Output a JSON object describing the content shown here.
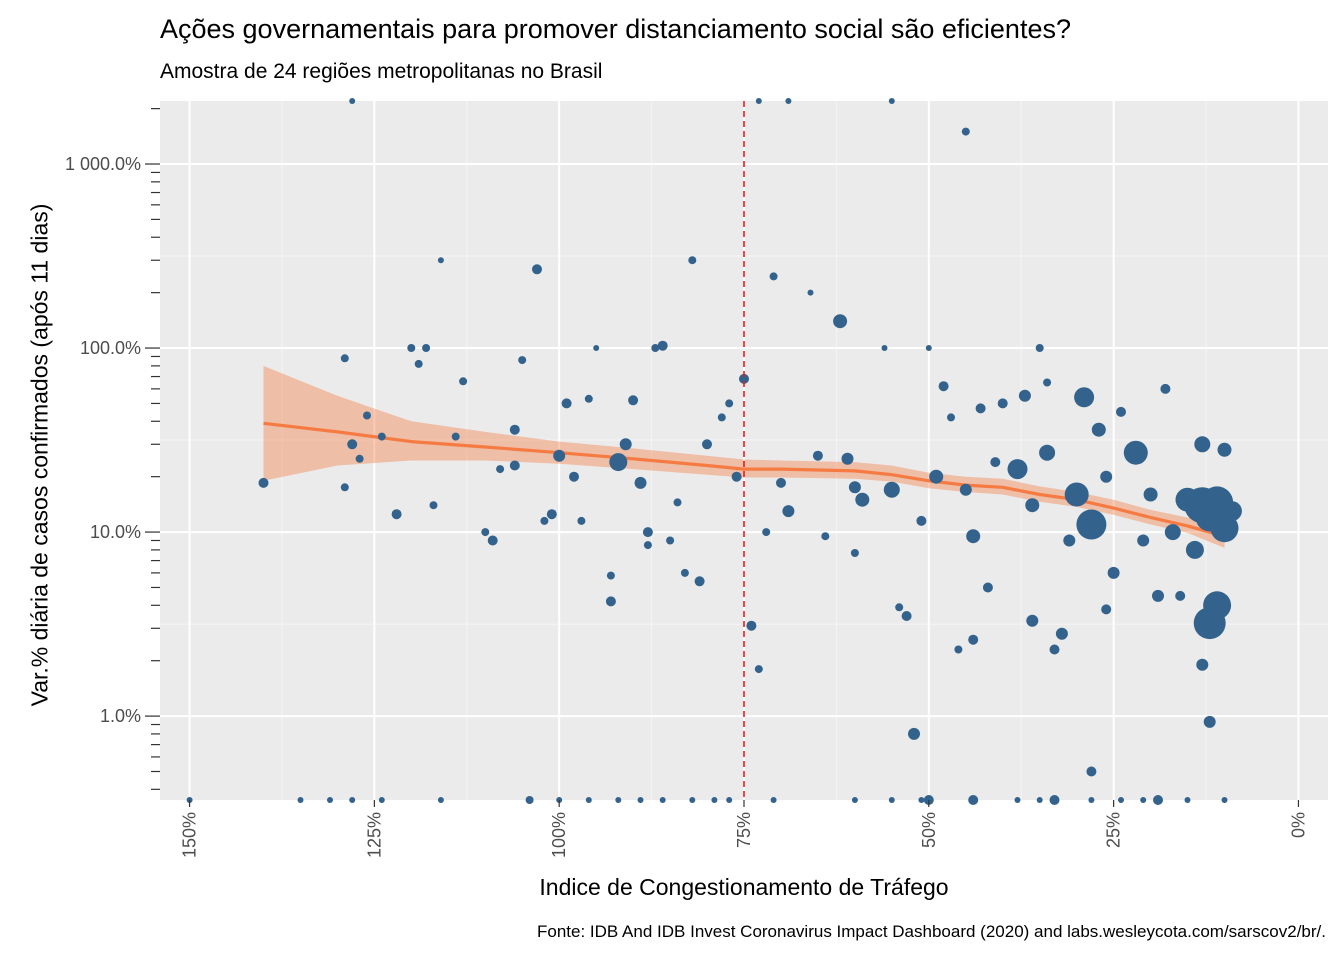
{
  "chart_data": {
    "type": "scatter",
    "title": "Ações governamentais para promover distanciamento social são eficientes?",
    "subtitle": "Amostra de 24 regiões metropolitanas no Brasil",
    "xlabel": "Indice de Congestionamento de Tráfego",
    "ylabel": "Var.% diária de casos confirmados (após 11 dias)",
    "caption": "Fonte: IDB And IDB Invest Coronavirus Impact Dashboard (2020) and labs.wesleycota.com/sarscov2/br/.",
    "x_axis": {
      "reversed": true,
      "xlim": [
        154,
        -4
      ],
      "ticks": [
        150,
        125,
        100,
        75,
        50,
        25,
        0
      ],
      "tick_labels": [
        "150%",
        "125%",
        "100%",
        "75%",
        "50%",
        "25%",
        "0%"
      ]
    },
    "y_axis": {
      "scale": "log10",
      "ylim": [
        0.35,
        2200
      ],
      "ticks": [
        1,
        10,
        100,
        1000
      ],
      "tick_labels": [
        "1.0%",
        "10.0%",
        "100.0%",
        "1 000.0%"
      ]
    },
    "reference_line": {
      "x": 75,
      "color": "#e41a1c",
      "style": "dashed"
    },
    "point_color": "#33638D",
    "smooth": {
      "color": "#F57B42",
      "band_color": "#F57B42",
      "x": [
        140,
        130,
        120,
        110,
        100,
        90,
        80,
        75,
        70,
        60,
        55,
        50,
        45,
        40,
        35,
        30,
        25,
        20,
        15,
        10
      ],
      "y": [
        39,
        35,
        31,
        29,
        27,
        25,
        23,
        22,
        22,
        21.5,
        20.5,
        19,
        18,
        17.5,
        16,
        15,
        13.5,
        12,
        10.8,
        9.5
      ],
      "lower": [
        19,
        23,
        24.5,
        24.5,
        23.5,
        22,
        20.5,
        19.8,
        19.8,
        19.5,
        18.8,
        17.3,
        16.5,
        16,
        14.6,
        13.7,
        12.4,
        11,
        9.9,
        8.2
      ],
      "upper": [
        80,
        55,
        40,
        35,
        31,
        28.5,
        26,
        24.8,
        24.5,
        24,
        23,
        21,
        20,
        19.5,
        17.7,
        16.5,
        15,
        13.2,
        12,
        11
      ]
    },
    "points": [
      {
        "x": 140,
        "y": 18.5,
        "s": 5
      },
      {
        "x": 129,
        "y": 88,
        "s": 4
      },
      {
        "x": 129,
        "y": 17.5,
        "s": 4
      },
      {
        "x": 128,
        "y": 30,
        "s": 5
      },
      {
        "x": 127,
        "y": 25,
        "s": 4
      },
      {
        "x": 126,
        "y": 43,
        "s": 4
      },
      {
        "x": 124,
        "y": 33,
        "s": 4
      },
      {
        "x": 122,
        "y": 12.5,
        "s": 5
      },
      {
        "x": 120,
        "y": 100,
        "s": 4
      },
      {
        "x": 119,
        "y": 82,
        "s": 4
      },
      {
        "x": 118,
        "y": 100,
        "s": 4
      },
      {
        "x": 117,
        "y": 14,
        "s": 4
      },
      {
        "x": 116,
        "y": 300,
        "s": 3
      },
      {
        "x": 114,
        "y": 33,
        "s": 4
      },
      {
        "x": 113,
        "y": 66,
        "s": 4
      },
      {
        "x": 110,
        "y": 10,
        "s": 4
      },
      {
        "x": 109,
        "y": 9,
        "s": 5
      },
      {
        "x": 108,
        "y": 22,
        "s": 4
      },
      {
        "x": 106,
        "y": 36,
        "s": 5
      },
      {
        "x": 106,
        "y": 23,
        "s": 5
      },
      {
        "x": 105,
        "y": 86,
        "s": 4
      },
      {
        "x": 103,
        "y": 268,
        "s": 5
      },
      {
        "x": 102,
        "y": 11.5,
        "s": 4
      },
      {
        "x": 101,
        "y": 12.5,
        "s": 5
      },
      {
        "x": 100,
        "y": 26,
        "s": 6
      },
      {
        "x": 99,
        "y": 50,
        "s": 5
      },
      {
        "x": 98,
        "y": 20,
        "s": 5
      },
      {
        "x": 97,
        "y": 11.5,
        "s": 4
      },
      {
        "x": 96,
        "y": 53,
        "s": 4
      },
      {
        "x": 95,
        "y": 100,
        "s": 3
      },
      {
        "x": 93,
        "y": 4.2,
        "s": 5
      },
      {
        "x": 93,
        "y": 5.8,
        "s": 4
      },
      {
        "x": 92,
        "y": 24,
        "s": 9
      },
      {
        "x": 91,
        "y": 30,
        "s": 6
      },
      {
        "x": 90,
        "y": 52,
        "s": 5
      },
      {
        "x": 89,
        "y": 18.5,
        "s": 6
      },
      {
        "x": 88,
        "y": 10,
        "s": 5
      },
      {
        "x": 88,
        "y": 8.5,
        "s": 4
      },
      {
        "x": 87,
        "y": 100,
        "s": 4
      },
      {
        "x": 86,
        "y": 103,
        "s": 5
      },
      {
        "x": 85,
        "y": 9,
        "s": 4
      },
      {
        "x": 84,
        "y": 14.5,
        "s": 4
      },
      {
        "x": 83,
        "y": 6,
        "s": 4
      },
      {
        "x": 82,
        "y": 300,
        "s": 4
      },
      {
        "x": 81,
        "y": 5.4,
        "s": 5
      },
      {
        "x": 80,
        "y": 30,
        "s": 5
      },
      {
        "x": 78,
        "y": 42,
        "s": 4
      },
      {
        "x": 77,
        "y": 50,
        "s": 4
      },
      {
        "x": 76,
        "y": 20,
        "s": 5
      },
      {
        "x": 75,
        "y": 68,
        "s": 5
      },
      {
        "x": 74,
        "y": 3.1,
        "s": 5
      },
      {
        "x": 73,
        "y": 1.8,
        "s": 4
      },
      {
        "x": 72,
        "y": 10,
        "s": 4
      },
      {
        "x": 71,
        "y": 245,
        "s": 4
      },
      {
        "x": 70,
        "y": 18.5,
        "s": 5
      },
      {
        "x": 69,
        "y": 13,
        "s": 6
      },
      {
        "x": 66,
        "y": 200,
        "s": 3
      },
      {
        "x": 65,
        "y": 26,
        "s": 5
      },
      {
        "x": 64,
        "y": 9.5,
        "s": 4
      },
      {
        "x": 62,
        "y": 140,
        "s": 7
      },
      {
        "x": 61,
        "y": 25,
        "s": 6
      },
      {
        "x": 60,
        "y": 7.7,
        "s": 4
      },
      {
        "x": 60,
        "y": 17.5,
        "s": 6
      },
      {
        "x": 59,
        "y": 15,
        "s": 7
      },
      {
        "x": 56,
        "y": 100,
        "s": 3
      },
      {
        "x": 55,
        "y": 17,
        "s": 8
      },
      {
        "x": 54,
        "y": 3.9,
        "s": 4
      },
      {
        "x": 53,
        "y": 3.5,
        "s": 5
      },
      {
        "x": 52,
        "y": 0.8,
        "s": 6
      },
      {
        "x": 51,
        "y": 11.5,
        "s": 5
      },
      {
        "x": 50,
        "y": 100,
        "s": 3
      },
      {
        "x": 49,
        "y": 20,
        "s": 7
      },
      {
        "x": 48,
        "y": 62,
        "s": 5
      },
      {
        "x": 47,
        "y": 42,
        "s": 4
      },
      {
        "x": 46,
        "y": 2.3,
        "s": 4
      },
      {
        "x": 45,
        "y": 1500,
        "s": 4
      },
      {
        "x": 45,
        "y": 17,
        "s": 6
      },
      {
        "x": 44,
        "y": 9.5,
        "s": 7
      },
      {
        "x": 44,
        "y": 2.6,
        "s": 5
      },
      {
        "x": 43,
        "y": 47,
        "s": 5
      },
      {
        "x": 42,
        "y": 5,
        "s": 5
      },
      {
        "x": 41,
        "y": 24,
        "s": 5
      },
      {
        "x": 40,
        "y": 50,
        "s": 5
      },
      {
        "x": 38,
        "y": 22,
        "s": 10
      },
      {
        "x": 37,
        "y": 55,
        "s": 6
      },
      {
        "x": 36,
        "y": 14,
        "s": 7
      },
      {
        "x": 36,
        "y": 3.3,
        "s": 6
      },
      {
        "x": 35,
        "y": 100,
        "s": 4
      },
      {
        "x": 34,
        "y": 27,
        "s": 8
      },
      {
        "x": 34,
        "y": 65,
        "s": 4
      },
      {
        "x": 33,
        "y": 2.3,
        "s": 5
      },
      {
        "x": 32,
        "y": 2.8,
        "s": 6
      },
      {
        "x": 31,
        "y": 9,
        "s": 6
      },
      {
        "x": 30,
        "y": 16,
        "s": 12
      },
      {
        "x": 29,
        "y": 54,
        "s": 10
      },
      {
        "x": 28,
        "y": 11,
        "s": 15
      },
      {
        "x": 28,
        "y": 0.5,
        "s": 5
      },
      {
        "x": 27,
        "y": 36,
        "s": 7
      },
      {
        "x": 26,
        "y": 3.8,
        "s": 5
      },
      {
        "x": 26,
        "y": 20,
        "s": 6
      },
      {
        "x": 25,
        "y": 6,
        "s": 6
      },
      {
        "x": 24,
        "y": 45,
        "s": 5
      },
      {
        "x": 22,
        "y": 27,
        "s": 12
      },
      {
        "x": 21,
        "y": 9,
        "s": 6
      },
      {
        "x": 20,
        "y": 16,
        "s": 7
      },
      {
        "x": 19,
        "y": 4.5,
        "s": 6
      },
      {
        "x": 18,
        "y": 60,
        "s": 5
      },
      {
        "x": 17,
        "y": 10,
        "s": 8
      },
      {
        "x": 16,
        "y": 4.5,
        "s": 5
      },
      {
        "x": 15,
        "y": 15,
        "s": 12
      },
      {
        "x": 14,
        "y": 8,
        "s": 9
      },
      {
        "x": 13,
        "y": 1.9,
        "s": 6
      },
      {
        "x": 13,
        "y": 14,
        "s": 18
      },
      {
        "x": 13,
        "y": 30,
        "s": 8
      },
      {
        "x": 12,
        "y": 3.2,
        "s": 16
      },
      {
        "x": 12,
        "y": 0.93,
        "s": 6
      },
      {
        "x": 12,
        "y": 12,
        "s": 14
      },
      {
        "x": 11,
        "y": 4,
        "s": 14
      },
      {
        "x": 11,
        "y": 14.5,
        "s": 16
      },
      {
        "x": 10,
        "y": 10.5,
        "s": 14
      },
      {
        "x": 10,
        "y": 28,
        "s": 7
      },
      {
        "x": 9,
        "y": 13,
        "s": 10
      },
      {
        "x": 128,
        "y": 2200,
        "s": 3
      },
      {
        "x": 73,
        "y": 2200,
        "s": 3
      },
      {
        "x": 69,
        "y": 2200,
        "s": 3
      },
      {
        "x": 55,
        "y": 2200,
        "s": 3
      },
      {
        "x": 150,
        "y": 0.35,
        "s": 3
      },
      {
        "x": 135,
        "y": 0.35,
        "s": 3
      },
      {
        "x": 131,
        "y": 0.35,
        "s": 3
      },
      {
        "x": 128,
        "y": 0.35,
        "s": 3
      },
      {
        "x": 124,
        "y": 0.35,
        "s": 3
      },
      {
        "x": 116,
        "y": 0.35,
        "s": 3
      },
      {
        "x": 104,
        "y": 0.35,
        "s": 4
      },
      {
        "x": 100,
        "y": 0.35,
        "s": 3
      },
      {
        "x": 96,
        "y": 0.35,
        "s": 3
      },
      {
        "x": 92,
        "y": 0.35,
        "s": 3
      },
      {
        "x": 89,
        "y": 0.35,
        "s": 3
      },
      {
        "x": 86,
        "y": 0.35,
        "s": 3
      },
      {
        "x": 82,
        "y": 0.35,
        "s": 3
      },
      {
        "x": 79,
        "y": 0.35,
        "s": 3
      },
      {
        "x": 77,
        "y": 0.35,
        "s": 3
      },
      {
        "x": 71,
        "y": 0.35,
        "s": 3
      },
      {
        "x": 60,
        "y": 0.35,
        "s": 3
      },
      {
        "x": 55,
        "y": 0.35,
        "s": 3
      },
      {
        "x": 51,
        "y": 0.35,
        "s": 3
      },
      {
        "x": 50,
        "y": 0.35,
        "s": 5
      },
      {
        "x": 44,
        "y": 0.35,
        "s": 5
      },
      {
        "x": 38,
        "y": 0.35,
        "s": 3
      },
      {
        "x": 35,
        "y": 0.35,
        "s": 3
      },
      {
        "x": 33,
        "y": 0.35,
        "s": 5
      },
      {
        "x": 28,
        "y": 0.35,
        "s": 3
      },
      {
        "x": 24,
        "y": 0.35,
        "s": 3
      },
      {
        "x": 21,
        "y": 0.35,
        "s": 3
      },
      {
        "x": 19,
        "y": 0.35,
        "s": 5
      },
      {
        "x": 15,
        "y": 0.35,
        "s": 3
      },
      {
        "x": 10,
        "y": 0.35,
        "s": 3
      }
    ]
  }
}
